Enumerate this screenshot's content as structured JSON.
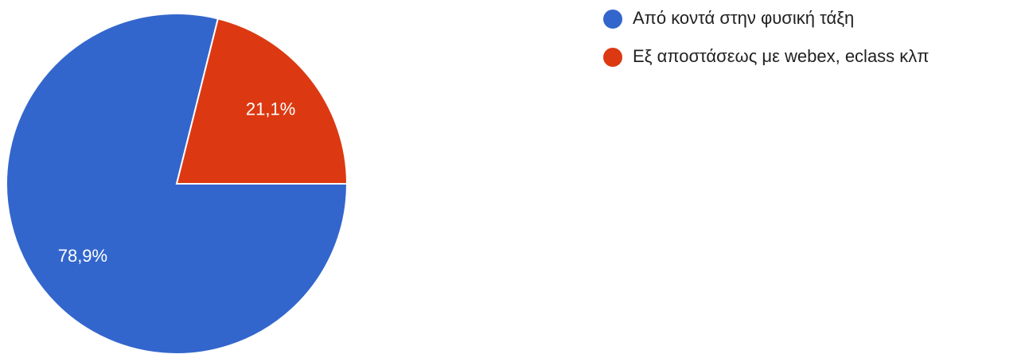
{
  "chart_data": {
    "type": "pie",
    "categories": [
      "Από κοντά στην φυσική τάξη",
      "Εξ αποστάσεως με webex, eclass κλπ"
    ],
    "values": [
      78.9,
      21.1
    ],
    "value_labels": [
      "78,9%",
      "21,1%"
    ],
    "colors": [
      "#3366cc",
      "#dc3912"
    ],
    "legend": "top-right"
  }
}
